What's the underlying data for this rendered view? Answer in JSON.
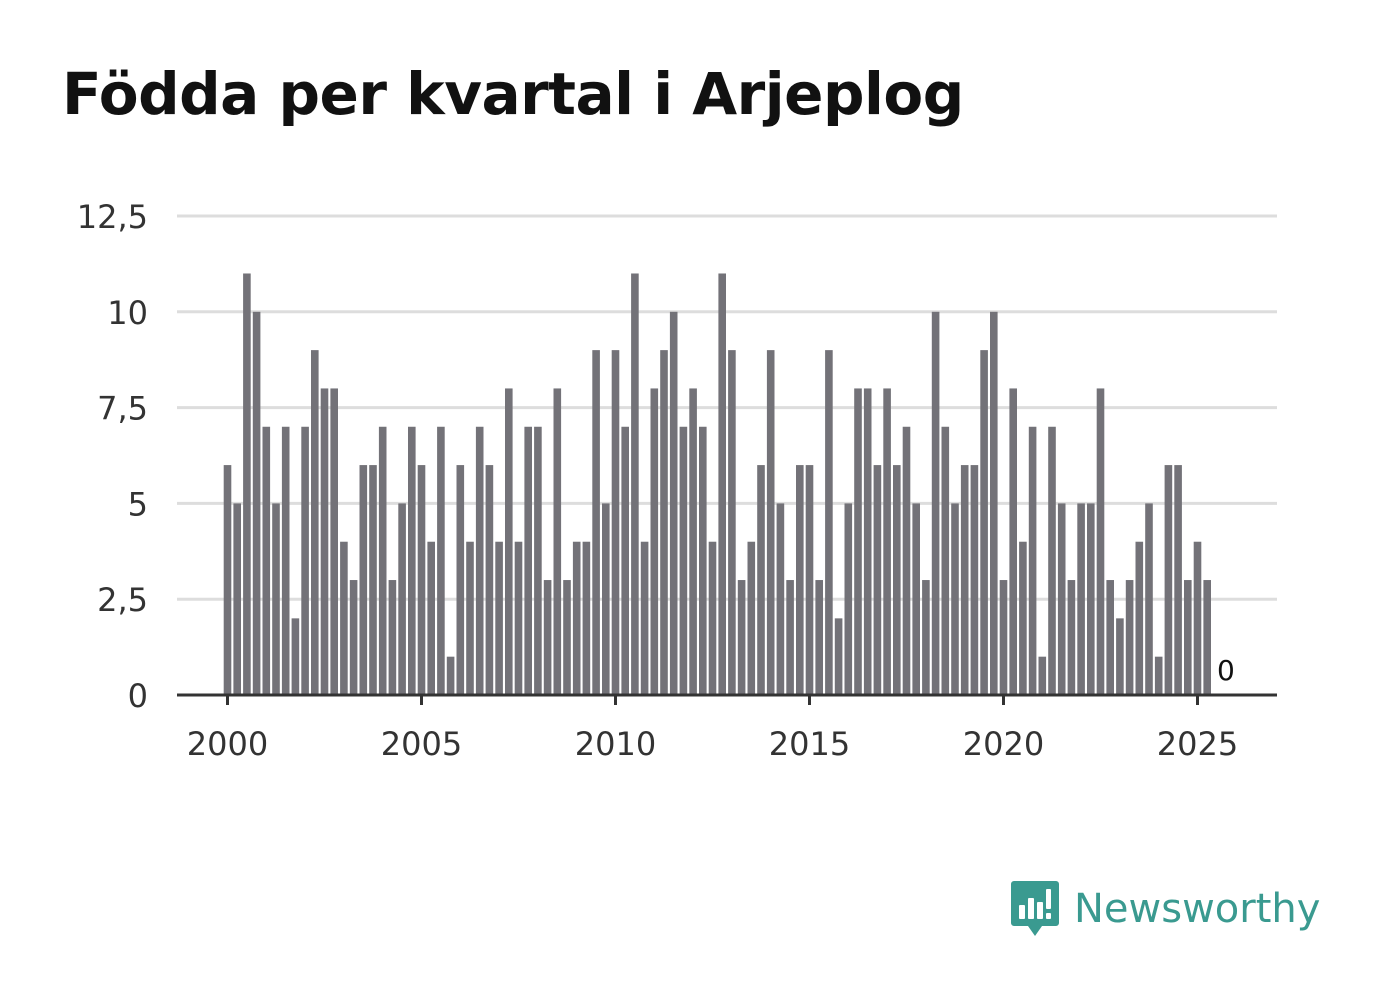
{
  "chart_data": {
    "type": "bar",
    "title": "Födda per kvartal i Arjeplog",
    "xlabel": "",
    "ylabel": "",
    "ylim": [
      0,
      12.5
    ],
    "y_ticks": [
      0,
      2.5,
      5,
      7.5,
      10,
      12.5
    ],
    "y_tick_labels": [
      "0",
      "2,5",
      "5",
      "7,5",
      "10",
      "12,5"
    ],
    "x_tick_labels": [
      "2000",
      "2005",
      "2010",
      "2015",
      "2020",
      "2025"
    ],
    "categories": [
      "2000K1",
      "2000K2",
      "2000K3",
      "2000K4",
      "2001K1",
      "2001K2",
      "2001K3",
      "2001K4",
      "2002K1",
      "2002K2",
      "2002K3",
      "2002K4",
      "2003K1",
      "2003K2",
      "2003K3",
      "2003K4",
      "2004K1",
      "2004K2",
      "2004K3",
      "2004K4",
      "2005K1",
      "2005K2",
      "2005K3",
      "2005K4",
      "2006K1",
      "2006K2",
      "2006K3",
      "2006K4",
      "2007K1",
      "2007K2",
      "2007K3",
      "2007K4",
      "2008K1",
      "2008K2",
      "2008K3",
      "2008K4",
      "2009K1",
      "2009K2",
      "2009K3",
      "2009K4",
      "2010K1",
      "2010K2",
      "2010K3",
      "2010K4",
      "2011K1",
      "2011K2",
      "2011K3",
      "2011K4",
      "2012K1",
      "2012K2",
      "2012K3",
      "2012K4",
      "2013K1",
      "2013K2",
      "2013K3",
      "2013K4",
      "2014K1",
      "2014K2",
      "2014K3",
      "2014K4",
      "2015K1",
      "2015K2",
      "2015K3",
      "2015K4",
      "2016K1",
      "2016K2",
      "2016K3",
      "2016K4",
      "2017K1",
      "2017K2",
      "2017K3",
      "2017K4",
      "2018K1",
      "2018K2",
      "2018K3",
      "2018K4",
      "2019K1",
      "2019K2",
      "2019K3",
      "2019K4",
      "2020K1",
      "2020K2",
      "2020K3",
      "2020K4",
      "2021K1",
      "2021K2",
      "2021K3",
      "2021K4",
      "2022K1",
      "2022K2",
      "2022K3",
      "2022K4",
      "2023K1",
      "2023K2",
      "2023K3",
      "2023K4",
      "2024K1",
      "2024K2",
      "2024K3",
      "2024K4",
      "2025K1",
      "2025K2",
      "2025K3"
    ],
    "values": [
      6,
      5,
      11,
      10,
      7,
      5,
      7,
      2,
      7,
      9,
      8,
      8,
      4,
      3,
      6,
      6,
      7,
      3,
      5,
      7,
      6,
      4,
      7,
      1,
      6,
      4,
      7,
      6,
      4,
      8,
      4,
      7,
      7,
      3,
      8,
      3,
      4,
      4,
      9,
      5,
      9,
      7,
      11,
      4,
      8,
      9,
      10,
      7,
      8,
      7,
      4,
      11,
      9,
      3,
      4,
      6,
      9,
      5,
      3,
      6,
      6,
      3,
      9,
      2,
      5,
      8,
      8,
      6,
      8,
      6,
      7,
      5,
      3,
      10,
      7,
      5,
      6,
      6,
      9,
      10,
      3,
      8,
      4,
      7,
      1,
      7,
      5,
      3,
      5,
      5,
      8,
      3,
      2,
      3,
      4,
      5,
      1,
      6,
      6,
      3,
      4,
      3,
      0
    ],
    "last_value_label": "0",
    "bar_color": "#737278",
    "grid": true
  },
  "brand": {
    "name": "Newsworthy",
    "icon": "newsworthy-logo-icon",
    "color": "#3a9a90"
  }
}
